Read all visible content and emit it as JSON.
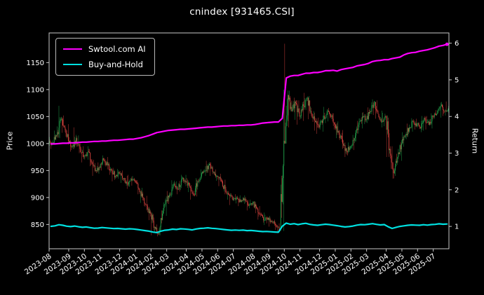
{
  "title": "cnindex [931465.CSI]",
  "axes": {
    "left_label": "Price",
    "right_label": "Return"
  },
  "chart_data": {
    "type": "candlestick",
    "title": "cnindex [931465.CSI]",
    "ylabel_left": "Price",
    "ylabel_right": "Return",
    "legend_position": "upper left",
    "grid": false,
    "background": "#000000",
    "spine_color": "#c9c9c9",
    "candle_colors": {
      "up": "#22a94e",
      "down": "#e04540"
    },
    "price_ticks": [
      850,
      900,
      950,
      1000,
      1050,
      1100,
      1150
    ],
    "return_ticks": [
      1,
      2,
      3,
      4,
      5,
      6
    ],
    "price_ylim": [
      805,
      1205
    ],
    "return_ylim": [
      0.39,
      6.28
    ],
    "x_tick_labels": [
      "2023-08",
      "2023-09",
      "2023-10",
      "2023-11",
      "2023-12",
      "2024-01",
      "2024-02",
      "2024-03",
      "2024-04",
      "2024-05",
      "2024-06",
      "2024-07",
      "2024-08",
      "2024-09",
      "2024-10",
      "2024-11",
      "2024-12",
      "2025-01",
      "2025-02",
      "2025-03",
      "2025-04",
      "2025-05",
      "2025-06",
      "2025-07"
    ],
    "month_start_week": [
      0,
      5,
      9,
      13,
      18,
      22,
      26,
      30,
      35,
      39,
      43,
      47,
      52,
      56,
      60,
      64,
      69,
      73,
      77,
      81,
      86,
      90,
      94,
      98
    ],
    "weekly_candles": {
      "closes": [
        1002,
        1015,
        1045,
        1030,
        1005,
        995,
        1010,
        990,
        975,
        985,
        965,
        950,
        955,
        970,
        960,
        950,
        940,
        945,
        935,
        925,
        935,
        930,
        915,
        900,
        885,
        870,
        845,
        832,
        870,
        895,
        905,
        925,
        915,
        935,
        930,
        920,
        905,
        930,
        945,
        950,
        962,
        948,
        940,
        930,
        915,
        905,
        895,
        900,
        892,
        898,
        885,
        890,
        880,
        868,
        858,
        862,
        855,
        848,
        842,
        1005,
        1090,
        1060,
        1075,
        1050,
        1070,
        1085,
        1055,
        1040,
        1030,
        1045,
        1060,
        1050,
        1035,
        1020,
        1000,
        985,
        995,
        1010,
        1035,
        1050,
        1045,
        1060,
        1075,
        1055,
        1040,
        1050,
        990,
        945,
        975,
        1000,
        1015,
        1030,
        1040,
        1035,
        1030,
        1045,
        1035,
        1050,
        1055,
        1070,
        1060,
        1065
      ],
      "highs": [
        1012,
        1024,
        1070,
        1052,
        1036,
        1012,
        1030,
        1015,
        995,
        995,
        990,
        970,
        965,
        978,
        975,
        965,
        955,
        953,
        950,
        940,
        942,
        940,
        932,
        918,
        903,
        888,
        872,
        850,
        876,
        902,
        912,
        932,
        930,
        942,
        942,
        936,
        923,
        936,
        952,
        958,
        968,
        965,
        952,
        944,
        933,
        920,
        908,
        906,
        904,
        904,
        901,
        896,
        893,
        884,
        872,
        868,
        866,
        859,
        852,
        1100,
        1185,
        1098,
        1085,
        1080,
        1078,
        1094,
        1088,
        1060,
        1048,
        1052,
        1068,
        1066,
        1056,
        1041,
        1025,
        1006,
        1002,
        1016,
        1042,
        1057,
        1058,
        1067,
        1082,
        1080,
        1061,
        1057,
        1052,
        995,
        981,
        1006,
        1021,
        1037,
        1047,
        1046,
        1042,
        1051,
        1051,
        1056,
        1062,
        1076,
        1077,
        1078
      ],
      "lows": [
        990,
        998,
        1010,
        1020,
        998,
        985,
        990,
        982,
        965,
        970,
        958,
        940,
        944,
        950,
        952,
        942,
        930,
        935,
        927,
        916,
        920,
        922,
        906,
        890,
        876,
        858,
        830,
        828,
        830,
        866,
        888,
        900,
        906,
        911,
        921,
        910,
        896,
        902,
        926,
        940,
        946,
        940,
        931,
        921,
        906,
        896,
        886,
        889,
        884,
        888,
        876,
        880,
        871,
        859,
        849,
        852,
        846,
        840,
        834,
        838,
        1000,
        1030,
        1044,
        1035,
        1042,
        1062,
        1045,
        1024,
        1018,
        1022,
        1038,
        1041,
        1026,
        1010,
        990,
        975,
        978,
        988,
        1004,
        1028,
        1036,
        1038,
        1053,
        1046,
        1030,
        1032,
        975,
        935,
        940,
        968,
        994,
        1008,
        1022,
        1026,
        1021,
        1024,
        1026,
        1028,
        1046,
        1048,
        1051,
        1052
      ]
    },
    "series": [
      {
        "name": "Swtool.com AI",
        "axis": "return",
        "color": "#ff00ff",
        "values": [
          3.25,
          3.25,
          3.26,
          3.27,
          3.27,
          3.28,
          3.28,
          3.29,
          3.3,
          3.3,
          3.31,
          3.32,
          3.32,
          3.33,
          3.33,
          3.34,
          3.35,
          3.35,
          3.36,
          3.37,
          3.38,
          3.38,
          3.4,
          3.42,
          3.45,
          3.48,
          3.52,
          3.56,
          3.58,
          3.6,
          3.62,
          3.63,
          3.64,
          3.65,
          3.65,
          3.66,
          3.67,
          3.68,
          3.69,
          3.7,
          3.71,
          3.71,
          3.72,
          3.73,
          3.74,
          3.74,
          3.75,
          3.75,
          3.76,
          3.76,
          3.77,
          3.77,
          3.78,
          3.8,
          3.82,
          3.83,
          3.84,
          3.85,
          3.85,
          3.95,
          5.05,
          5.1,
          5.12,
          5.12,
          5.15,
          5.18,
          5.18,
          5.2,
          5.2,
          5.22,
          5.25,
          5.25,
          5.26,
          5.24,
          5.28,
          5.3,
          5.32,
          5.34,
          5.38,
          5.4,
          5.42,
          5.45,
          5.5,
          5.52,
          5.53,
          5.55,
          5.55,
          5.58,
          5.6,
          5.62,
          5.68,
          5.72,
          5.74,
          5.75,
          5.78,
          5.8,
          5.82,
          5.85,
          5.88,
          5.92,
          5.94,
          5.97
        ]
      },
      {
        "name": "Buy-and-Hold",
        "axis": "return",
        "color": "#00e1e1",
        "values": [
          1.002,
          1.015,
          1.045,
          1.03,
          1.005,
          0.995,
          1.01,
          0.99,
          0.975,
          0.985,
          0.965,
          0.95,
          0.955,
          0.97,
          0.96,
          0.95,
          0.94,
          0.945,
          0.935,
          0.925,
          0.935,
          0.93,
          0.915,
          0.9,
          0.885,
          0.87,
          0.845,
          0.832,
          0.87,
          0.895,
          0.905,
          0.925,
          0.915,
          0.935,
          0.93,
          0.92,
          0.905,
          0.93,
          0.945,
          0.95,
          0.962,
          0.948,
          0.94,
          0.93,
          0.915,
          0.905,
          0.895,
          0.9,
          0.892,
          0.898,
          0.885,
          0.89,
          0.88,
          0.868,
          0.858,
          0.862,
          0.855,
          0.848,
          0.842,
          1.005,
          1.09,
          1.06,
          1.075,
          1.05,
          1.07,
          1.085,
          1.055,
          1.04,
          1.03,
          1.045,
          1.06,
          1.05,
          1.035,
          1.02,
          1.0,
          0.985,
          0.995,
          1.01,
          1.035,
          1.05,
          1.045,
          1.06,
          1.075,
          1.055,
          1.04,
          1.05,
          0.99,
          0.945,
          0.975,
          1.0,
          1.015,
          1.03,
          1.04,
          1.035,
          1.03,
          1.045,
          1.035,
          1.05,
          1.055,
          1.07,
          1.06,
          1.065
        ]
      }
    ]
  }
}
